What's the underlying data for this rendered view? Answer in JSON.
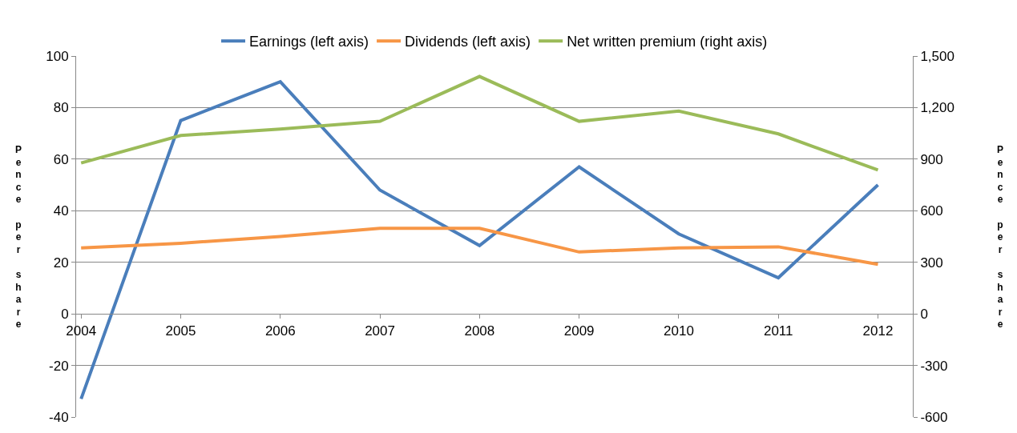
{
  "chart_data": {
    "type": "line",
    "categories": [
      "2004",
      "2005",
      "2006",
      "2007",
      "2008",
      "2009",
      "2010",
      "2011",
      "2012"
    ],
    "series": [
      {
        "name": "Earnings (left axis)",
        "color": "#4a7ebb",
        "values": [
          -33,
          75,
          90,
          48,
          26.5,
          57,
          31,
          14,
          50
        ]
      },
      {
        "name": "Dividends (left axis)",
        "color": "#f79646",
        "values": [
          25.6,
          27.4,
          30,
          33.2,
          33.2,
          24,
          25.6,
          26,
          19.2
        ]
      },
      {
        "name": "Net written premium (right axis)",
        "color": "#9bbb59",
        "axis": "y2",
        "values": [
          878,
          1038,
          1075,
          1120,
          1381,
          1120,
          1180,
          1047,
          837
        ]
      }
    ],
    "ylabel": "Pence per share",
    "y2label": "Pence per share",
    "ylim": [
      -40,
      100
    ],
    "yticks": [
      -40,
      -20,
      0,
      20,
      40,
      60,
      80,
      100
    ],
    "y2lim": [
      -600,
      1500
    ],
    "y2ticks": [
      {
        "value": -600,
        "label": "-600"
      },
      {
        "value": -300,
        "label": "-300"
      },
      {
        "value": 0,
        "label": "0"
      },
      {
        "value": 300,
        "label": "300"
      },
      {
        "value": 600,
        "label": "600"
      },
      {
        "value": 900,
        "label": "900"
      },
      {
        "value": 1200,
        "label": "1,200"
      },
      {
        "value": 1500,
        "label": "1,500"
      }
    ],
    "grid": "y",
    "legend": "top",
    "marker": "none",
    "line_style": "solid"
  }
}
